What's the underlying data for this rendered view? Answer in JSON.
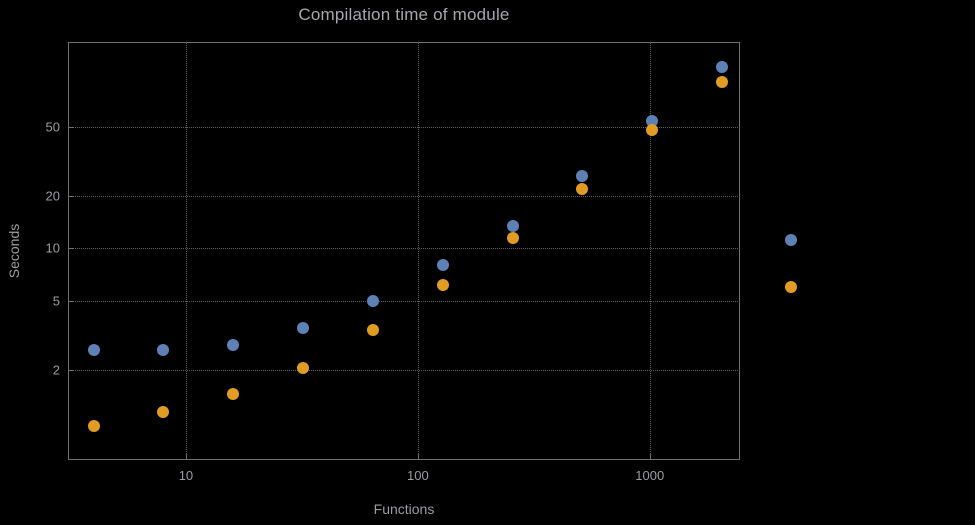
{
  "title": "Compilation time of module",
  "xlabel": "Functions",
  "ylabel": "Seconds",
  "colors": {
    "background": "#000000",
    "frame": "#6f7073",
    "grid": "#5f6063",
    "text": "#9b9ca0",
    "series_blue": "#5e81b5",
    "series_orange": "#e19c24"
  },
  "chart_data": {
    "type": "scatter",
    "title": "Compilation time of module",
    "xlabel": "Functions",
    "ylabel": "Seconds",
    "x_scale": "log",
    "y_scale": "log",
    "grid": true,
    "x": [
      4,
      8,
      16,
      32,
      64,
      128,
      256,
      512,
      1024,
      2048
    ],
    "series": [
      {
        "name": "blue",
        "color": "#5e81b5",
        "values": [
          2.6,
          2.6,
          2.8,
          3.5,
          5.0,
          8.0,
          13.5,
          26,
          54,
          110
        ]
      },
      {
        "name": "orange",
        "color": "#e19c24",
        "values": [
          0.95,
          1.15,
          1.45,
          2.05,
          3.4,
          6.2,
          11.5,
          22,
          48,
          90
        ]
      }
    ],
    "x_ticks": [
      {
        "value": 10,
        "label": "10"
      },
      {
        "value": 100,
        "label": "100"
      },
      {
        "value": 1000,
        "label": "1000"
      }
    ],
    "y_ticks": [
      {
        "value": 2,
        "label": "2"
      },
      {
        "value": 5,
        "label": "5"
      },
      {
        "value": 10,
        "label": "10"
      },
      {
        "value": 20,
        "label": "20"
      },
      {
        "value": 50,
        "label": "50"
      }
    ],
    "xlim": [
      3.1,
      2450
    ],
    "ylim": [
      0.61,
      153
    ],
    "legend_position": "right-outside"
  },
  "legend": {
    "markers": [
      {
        "series": "blue",
        "color": "#5e81b5"
      },
      {
        "series": "orange",
        "color": "#e19c24"
      }
    ]
  }
}
